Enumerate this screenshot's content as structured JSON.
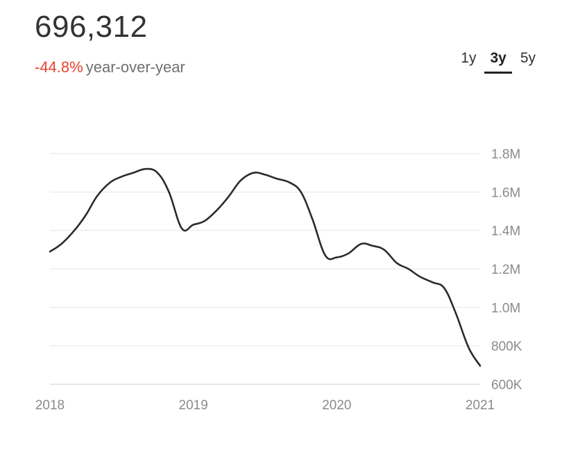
{
  "header": {
    "current_value": "696,312",
    "change_value": "-44.8%",
    "change_label": "year-over-year"
  },
  "range_tabs": [
    {
      "label": "1y",
      "active": false
    },
    {
      "label": "3y",
      "active": true
    },
    {
      "label": "5y",
      "active": false
    }
  ],
  "colors": {
    "negative": "#e8432e",
    "line": "#2b2b2b",
    "grid": "#e4e4e4",
    "tick_text": "#8a8a8a"
  },
  "chart_data": {
    "type": "line",
    "title": "",
    "xlabel": "",
    "ylabel": "",
    "x_ticks": [
      "2018",
      "2019",
      "2020",
      "2021"
    ],
    "y_ticks": [
      "600K",
      "800K",
      "1.0M",
      "1.2M",
      "1.4M",
      "1.6M",
      "1.8M"
    ],
    "xlim": [
      2018.0,
      2021.0
    ],
    "ylim": [
      600000,
      1800000
    ],
    "grid": true,
    "y_axis_position": "right",
    "series": [
      {
        "values_x": [
          2018.0,
          2018.08,
          2018.17,
          2018.25,
          2018.33,
          2018.42,
          2018.5,
          2018.58,
          2018.67,
          2018.75,
          2018.83,
          2018.92,
          2019.0,
          2019.08,
          2019.17,
          2019.25,
          2019.33,
          2019.42,
          2019.5,
          2019.58,
          2019.67,
          2019.75,
          2019.83,
          2019.92,
          2020.0,
          2020.08,
          2020.17,
          2020.25,
          2020.33,
          2020.42,
          2020.5,
          2020.58,
          2020.67,
          2020.75,
          2020.83,
          2020.92,
          2021.0
        ],
        "values_y": [
          1290000,
          1330000,
          1400000,
          1480000,
          1580000,
          1650000,
          1680000,
          1700000,
          1720000,
          1700000,
          1600000,
          1410000,
          1430000,
          1450000,
          1510000,
          1580000,
          1660000,
          1700000,
          1690000,
          1670000,
          1650000,
          1600000,
          1460000,
          1270000,
          1260000,
          1280000,
          1330000,
          1320000,
          1300000,
          1230000,
          1200000,
          1160000,
          1130000,
          1100000,
          970000,
          790000,
          696312
        ]
      }
    ]
  }
}
